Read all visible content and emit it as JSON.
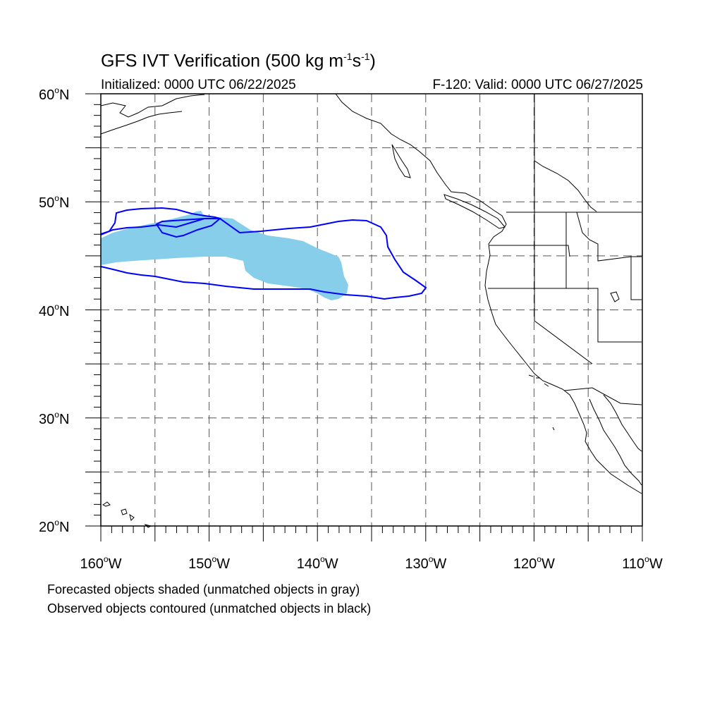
{
  "title": {
    "main": "GFS IVT Verification (500 kg m",
    "exp1": "-1",
    "mid": "s",
    "exp2": "-1",
    "end": ")"
  },
  "initialized": "Initialized: 0000 UTC 06/22/2025",
  "valid": "F-120: Valid: 0000 UTC 06/27/2025",
  "lat_labels": [
    {
      "num": "60",
      "suffix": "N"
    },
    {
      "num": "50",
      "suffix": "N"
    },
    {
      "num": "40",
      "suffix": "N"
    },
    {
      "num": "30",
      "suffix": "N"
    },
    {
      "num": "20",
      "suffix": "N"
    }
  ],
  "lon_labels": [
    {
      "num": "160",
      "suffix": "W"
    },
    {
      "num": "150",
      "suffix": "W"
    },
    {
      "num": "140",
      "suffix": "W"
    },
    {
      "num": "130",
      "suffix": "W"
    },
    {
      "num": "120",
      "suffix": "W"
    },
    {
      "num": "110",
      "suffix": "W"
    }
  ],
  "degree_symbol": "o",
  "legend_notes": [
    "Forecasted objects shaded (unmatched objects in gray)",
    "Observed objects contoured (unmatched objects in black)"
  ],
  "colors": {
    "forecast_fill": "#87ceeb",
    "observed_contour": "#0000ff",
    "coastline": "#000000",
    "grid": "#555555"
  }
}
